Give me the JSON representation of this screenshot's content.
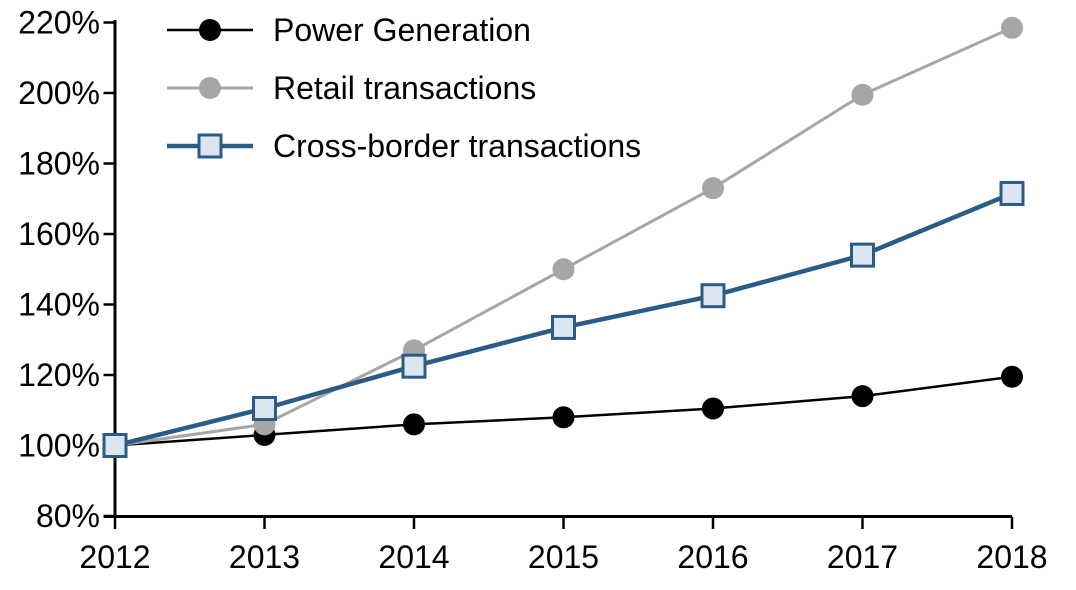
{
  "chart_data": {
    "type": "line",
    "title": "",
    "xlabel": "",
    "ylabel": "",
    "x_labels": [
      "2012",
      "2013",
      "2014",
      "2015",
      "2016",
      "2017",
      "2018"
    ],
    "y_axis": {
      "min": 80,
      "max": 220,
      "step": 20,
      "unit": "%",
      "tick_labels": [
        "80%",
        "100%",
        "120%",
        "140%",
        "160%",
        "180%",
        "200%",
        "220%"
      ]
    },
    "grid": false,
    "legend_position": "top-left",
    "series": [
      {
        "name": "Power Generation",
        "values": [
          100,
          103,
          106,
          108,
          110.5,
          114,
          119.5
        ],
        "color": "#000000",
        "marker": "circle",
        "marker_fill": "#000000",
        "line_width": 2.5
      },
      {
        "name": "Retail transactions",
        "values": [
          100,
          106,
          127,
          150,
          173,
          199.5,
          218.5
        ],
        "color": "#A6A6A6",
        "marker": "circle",
        "marker_fill": "#A6A6A6",
        "line_width": 3
      },
      {
        "name": "Cross-border transactions",
        "values": [
          100,
          110.5,
          122.5,
          133.5,
          142.5,
          154,
          171.5
        ],
        "color": "#2B5C85",
        "marker": "square",
        "marker_fill": "#DCE6F1",
        "line_width": 4.5
      }
    ]
  },
  "colors": {
    "background": "#FFFFFF",
    "axis": "#000000",
    "text": "#000000",
    "accent_blue": "#2B5C85",
    "accent_gray": "#A6A6A6",
    "marker_light_blue": "#DCE6F1"
  }
}
